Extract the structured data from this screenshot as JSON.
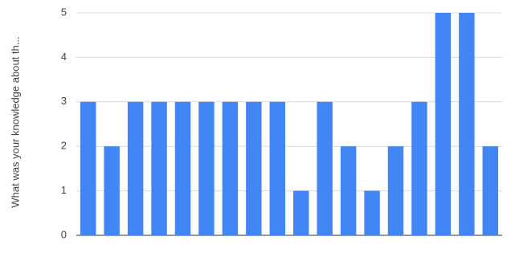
{
  "chart_data": {
    "type": "bar",
    "y_axis_label": "What was your knowledge about th...",
    "categories": [
      null,
      null,
      null,
      null,
      null,
      null,
      null,
      null,
      null,
      null,
      null,
      null,
      null,
      null,
      null,
      null,
      null,
      null
    ],
    "values": [
      3,
      2,
      3,
      3,
      3,
      3,
      3,
      3,
      3,
      1,
      3,
      2,
      1,
      2,
      3,
      5,
      5,
      2
    ],
    "color": "#4285f4",
    "ylim": [
      0,
      5
    ],
    "yticks": [
      0,
      1,
      2,
      3,
      4,
      5
    ],
    "grid": true
  }
}
